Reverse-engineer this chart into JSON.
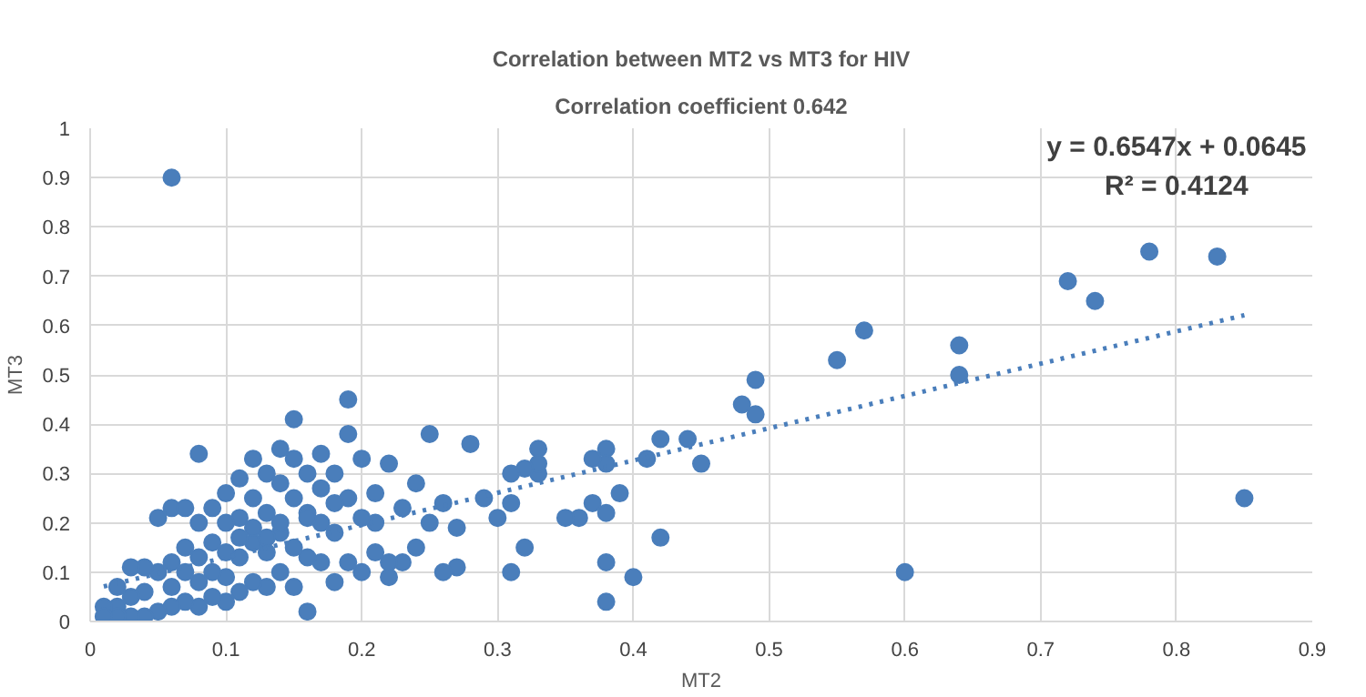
{
  "chart_data": {
    "type": "scatter",
    "title": "Correlation between MT2 vs MT3 for HIV",
    "subtitle": "Correlation coefficient 0.642",
    "xlabel": "MT2",
    "ylabel": "MT3",
    "annotations": [
      "y = 0.6547x + 0.0645",
      "R² = 0.4124"
    ],
    "xlim": [
      0,
      0.9
    ],
    "ylim": [
      0,
      1
    ],
    "xticks": [
      0,
      0.1,
      0.2,
      0.3,
      0.4,
      0.5,
      0.6,
      0.7,
      0.8,
      0.9
    ],
    "yticks": [
      0,
      0.1,
      0.2,
      0.3,
      0.4,
      0.5,
      0.6,
      0.7,
      0.8,
      0.9,
      1
    ],
    "grid": true,
    "marker": "circle",
    "series": [
      {
        "color": "#4a7ebb",
        "x": [
          0.06,
          0.85,
          0.83,
          0.78,
          0.74,
          0.72,
          0.64,
          0.64,
          0.6,
          0.57,
          0.55,
          0.49,
          0.49,
          0.48,
          0.45,
          0.44,
          0.42,
          0.41,
          0.42,
          0.4,
          0.38,
          0.38,
          0.39,
          0.38,
          0.38,
          0.38,
          0.37,
          0.37,
          0.36,
          0.35,
          0.33,
          0.33,
          0.33,
          0.32,
          0.31,
          0.31,
          0.31,
          0.3,
          0.32,
          0.29,
          0.28,
          0.27,
          0.27,
          0.26,
          0.26,
          0.25,
          0.25,
          0.24,
          0.24,
          0.23,
          0.23,
          0.22,
          0.22,
          0.21,
          0.21,
          0.2,
          0.2,
          0.2,
          0.19,
          0.19,
          0.19,
          0.19,
          0.18,
          0.18,
          0.18,
          0.17,
          0.17,
          0.17,
          0.16,
          0.16,
          0.16,
          0.16,
          0.15,
          0.15,
          0.15,
          0.15,
          0.15,
          0.14,
          0.14,
          0.14,
          0.14,
          0.13,
          0.13,
          0.13,
          0.13,
          0.12,
          0.12,
          0.12,
          0.12,
          0.11,
          0.11,
          0.11,
          0.11,
          0.1,
          0.1,
          0.1,
          0.1,
          0.1,
          0.09,
          0.09,
          0.09,
          0.09,
          0.08,
          0.08,
          0.08,
          0.08,
          0.08,
          0.07,
          0.07,
          0.07,
          0.06,
          0.06,
          0.06,
          0.05,
          0.05,
          0.05,
          0.04,
          0.04,
          0.04,
          0.03,
          0.03,
          0.03,
          0.02,
          0.02,
          0.02,
          0.01,
          0.01,
          0.12,
          0.14,
          0.17,
          0.21,
          0.11,
          0.13,
          0.16,
          0.22,
          0.18,
          0.06,
          0.07
        ],
        "values": [
          0.9,
          0.25,
          0.74,
          0.75,
          0.65,
          0.69,
          0.56,
          0.5,
          0.1,
          0.59,
          0.53,
          0.49,
          0.42,
          0.44,
          0.32,
          0.37,
          0.37,
          0.33,
          0.17,
          0.09,
          0.04,
          0.12,
          0.26,
          0.35,
          0.32,
          0.22,
          0.24,
          0.33,
          0.21,
          0.21,
          0.35,
          0.3,
          0.32,
          0.31,
          0.24,
          0.1,
          0.3,
          0.21,
          0.15,
          0.25,
          0.36,
          0.19,
          0.11,
          0.24,
          0.1,
          0.38,
          0.2,
          0.15,
          0.28,
          0.12,
          0.23,
          0.09,
          0.32,
          0.2,
          0.14,
          0.1,
          0.21,
          0.33,
          0.45,
          0.38,
          0.25,
          0.12,
          0.3,
          0.18,
          0.08,
          0.34,
          0.2,
          0.12,
          0.02,
          0.3,
          0.22,
          0.13,
          0.41,
          0.33,
          0.25,
          0.15,
          0.07,
          0.35,
          0.28,
          0.18,
          0.1,
          0.3,
          0.22,
          0.14,
          0.07,
          0.33,
          0.25,
          0.16,
          0.08,
          0.29,
          0.21,
          0.13,
          0.06,
          0.26,
          0.2,
          0.14,
          0.09,
          0.04,
          0.23,
          0.16,
          0.1,
          0.05,
          0.34,
          0.2,
          0.13,
          0.08,
          0.03,
          0.15,
          0.1,
          0.04,
          0.23,
          0.12,
          0.03,
          0.21,
          0.1,
          0.02,
          0.11,
          0.06,
          0.01,
          0.11,
          0.05,
          0.01,
          0.07,
          0.03,
          0.01,
          0.03,
          0.01,
          0.19,
          0.2,
          0.27,
          0.26,
          0.17,
          0.17,
          0.21,
          0.12,
          0.24,
          0.07,
          0.23
        ]
      },
      {
        "type": "line",
        "color": "#4a7ebb",
        "line_style": "dotted",
        "marker": "none",
        "x": [
          0.01,
          0.85
        ],
        "values": [
          0.071,
          0.621
        ]
      }
    ]
  }
}
